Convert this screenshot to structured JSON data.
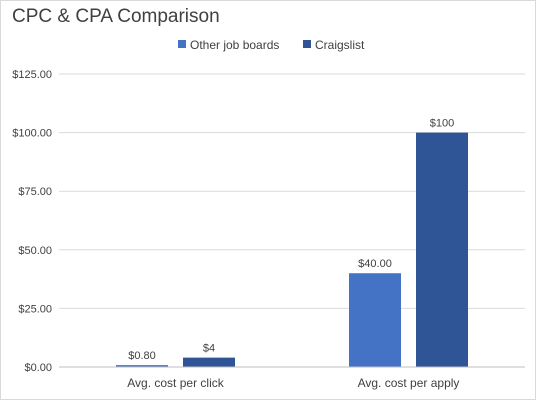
{
  "chart_data": {
    "type": "bar",
    "title": "CPC & CPA Comparison",
    "categories": [
      "Avg. cost per click",
      "Avg. cost per apply"
    ],
    "series": [
      {
        "name": "Other job boards",
        "values": [
          0.8,
          40.0
        ],
        "labels": [
          "$0.80",
          "$40.00"
        ],
        "color": "#4472c4"
      },
      {
        "name": "Craigslist",
        "values": [
          4,
          100
        ],
        "labels": [
          "$4",
          "$100"
        ],
        "color": "#2f5597"
      }
    ],
    "xlabel": "",
    "ylabel": "",
    "ylim": [
      0,
      125
    ],
    "yticks": [
      0,
      25,
      50,
      75,
      100,
      125
    ],
    "ytick_labels": [
      "$0.00",
      "$25.00",
      "$50.00",
      "$75.00",
      "$100.00",
      "$125.00"
    ],
    "grid": true,
    "legend_position": "top-center"
  }
}
